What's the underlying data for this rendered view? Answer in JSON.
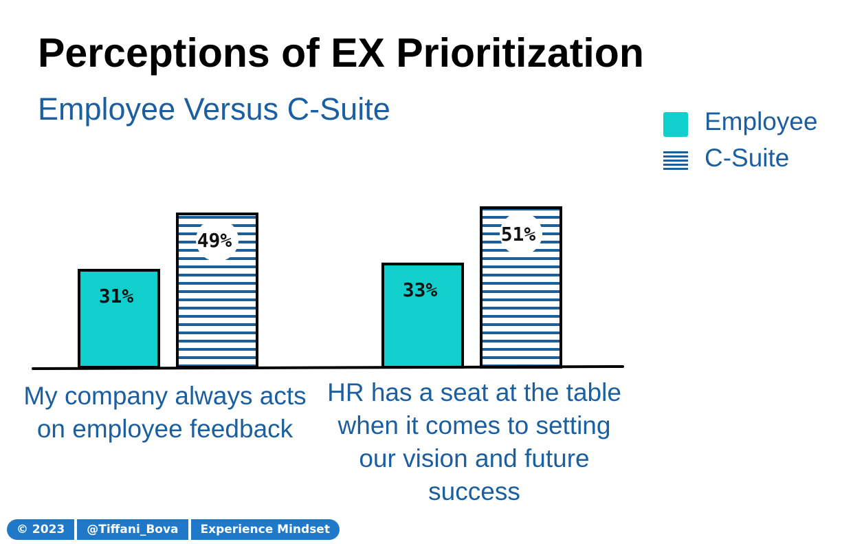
{
  "title": "Perceptions of EX Prioritization",
  "subtitle": "Employee Versus C-Suite",
  "footer": {
    "year": "© 2023",
    "handle": "@Tiffani_Bova",
    "book": "Experience Mindset"
  },
  "colors": {
    "employee": "#11cfcc",
    "csuite_stripe": "#1a5e9a",
    "text_blue": "#1b5fa0",
    "footer_blue": "#1f78c8"
  },
  "chart_data": {
    "type": "bar",
    "title": "Perceptions of EX Prioritization",
    "subtitle": "Employee Versus C-Suite",
    "categories": [
      "My company always acts on employee feedback",
      "HR has a seat at the table when it comes to setting our vision and future success"
    ],
    "series": [
      {
        "name": "Employee",
        "values": [
          31,
          33
        ],
        "labels": [
          "31%",
          "33%"
        ],
        "pattern": "solid"
      },
      {
        "name": "C-Suite",
        "values": [
          49,
          51
        ],
        "labels": [
          "49%",
          "51%"
        ],
        "pattern": "horizontal-stripes"
      }
    ],
    "legend": {
      "position": "top-right"
    },
    "ylim": [
      0,
      60
    ],
    "grid": false,
    "xlabel": "",
    "ylabel": ""
  }
}
